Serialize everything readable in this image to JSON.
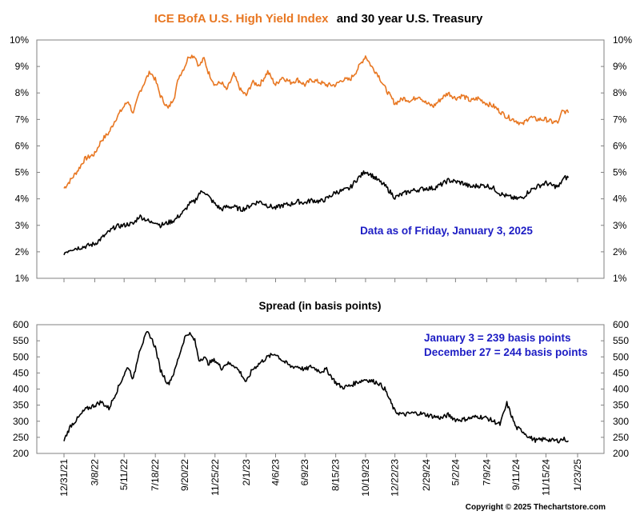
{
  "top_title": {
    "part1": "ICE BofA U.S. High Yield Index",
    "part2": "and 30 year U.S. Treasury",
    "part1_color": "#e87722",
    "part2_color": "#000000"
  },
  "bottom_title": "Spread (in basis points)",
  "annotation_top": "Data as of Friday, January 3, 2025",
  "annotation_bottom": [
    "January 3 = 239 basis points",
    "December 27 = 244 basis points"
  ],
  "annotation_color": "#1c1cc4",
  "copyright": "Copyright © 2025 Thechartstore.com",
  "x_axis_dates": [
    "12/31/21",
    "3/8/22",
    "5/11/22",
    "7/18/22",
    "9/20/22",
    "11/25/22",
    "2/1/23",
    "4/6/23",
    "6/9/23",
    "8/15/23",
    "10/19/23",
    "12/22/23",
    "2/29/24",
    "5/2/24",
    "7/9/24",
    "9/11/24",
    "11/15/24",
    "1/23/25"
  ],
  "chart_data": [
    {
      "type": "line",
      "ylim": [
        1,
        10
      ],
      "ytick_labels": [
        "1%",
        "2%",
        "3%",
        "4%",
        "5%",
        "6%",
        "7%",
        "8%",
        "9%",
        "10%"
      ],
      "grid": false,
      "series": [
        {
          "name": "ICE BofA U.S. High Yield Index",
          "color": "#e87722",
          "x": [
            "12/31/21",
            "1/14/22",
            "1/31/22",
            "2/14/22",
            "3/8/22",
            "3/22/22",
            "4/8/22",
            "4/22/22",
            "5/11/22",
            "5/20/22",
            "5/31/22",
            "6/13/22",
            "6/30/22",
            "7/7/22",
            "7/18/22",
            "7/29/22",
            "8/15/22",
            "8/29/22",
            "9/7/22",
            "9/20/22",
            "9/29/22",
            "10/12/22",
            "10/21/22",
            "11/1/22",
            "11/10/22",
            "11/25/22",
            "12/9/22",
            "12/20/22",
            "1/5/23",
            "1/20/23",
            "2/1/23",
            "2/14/23",
            "3/2/23",
            "3/20/23",
            "4/6/23",
            "4/20/23",
            "5/9/23",
            "5/24/23",
            "6/9/23",
            "6/23/23",
            "7/12/23",
            "7/26/23",
            "8/15/23",
            "8/29/23",
            "9/15/23",
            "9/28/23",
            "10/19/23",
            "11/1/23",
            "11/15/23",
            "11/30/23",
            "12/22/23",
            "1/10/24",
            "1/26/24",
            "2/12/24",
            "2/29/24",
            "3/15/24",
            "4/2/24",
            "4/16/24",
            "5/2/24",
            "5/17/24",
            "6/4/24",
            "6/20/24",
            "7/9/24",
            "7/24/24",
            "8/7/24",
            "8/22/24",
            "9/11/24",
            "9/25/24",
            "10/10/24",
            "10/25/24",
            "11/15/24",
            "11/29/24",
            "12/13/24",
            "12/20/24",
            "12/27/24",
            "1/3/25"
          ],
          "values": [
            4.4,
            4.7,
            5.1,
            5.5,
            5.7,
            6.2,
            6.5,
            7.0,
            7.5,
            7.7,
            7.2,
            8.0,
            8.6,
            8.8,
            8.5,
            7.9,
            7.4,
            7.9,
            8.6,
            9.0,
            9.4,
            9.4,
            9.0,
            9.3,
            8.8,
            8.3,
            8.4,
            8.1,
            8.7,
            8.1,
            7.9,
            8.4,
            8.3,
            8.8,
            8.3,
            8.6,
            8.4,
            8.5,
            8.3,
            8.5,
            8.4,
            8.3,
            8.3,
            8.5,
            8.5,
            8.8,
            9.4,
            9.0,
            8.7,
            8.2,
            7.6,
            7.8,
            7.7,
            7.9,
            7.6,
            7.5,
            7.8,
            8.0,
            7.8,
            7.9,
            7.7,
            7.8,
            7.6,
            7.5,
            7.3,
            7.1,
            6.95,
            6.8,
            7.1,
            7.0,
            7.0,
            6.9,
            6.9,
            7.3,
            7.3,
            7.25
          ]
        },
        {
          "name": "30 year U.S. Treasury",
          "color": "#000000",
          "x": [
            "12/31/21",
            "1/14/22",
            "1/31/22",
            "2/14/22",
            "3/8/22",
            "3/22/22",
            "4/8/22",
            "4/22/22",
            "5/11/22",
            "5/20/22",
            "5/31/22",
            "6/13/22",
            "6/30/22",
            "7/7/22",
            "7/18/22",
            "7/29/22",
            "8/15/22",
            "8/29/22",
            "9/7/22",
            "9/20/22",
            "9/29/22",
            "10/12/22",
            "10/21/22",
            "11/1/22",
            "11/10/22",
            "11/25/22",
            "12/9/22",
            "12/20/22",
            "1/5/23",
            "1/20/23",
            "2/1/23",
            "2/14/23",
            "3/2/23",
            "3/20/23",
            "4/6/23",
            "4/20/23",
            "5/9/23",
            "5/24/23",
            "6/9/23",
            "6/23/23",
            "7/12/23",
            "7/26/23",
            "8/15/23",
            "8/29/23",
            "9/15/23",
            "9/28/23",
            "10/19/23",
            "11/1/23",
            "11/15/23",
            "11/30/23",
            "12/22/23",
            "1/10/24",
            "1/26/24",
            "2/12/24",
            "2/29/24",
            "3/15/24",
            "4/2/24",
            "4/16/24",
            "5/2/24",
            "5/17/24",
            "6/4/24",
            "6/20/24",
            "7/9/24",
            "7/24/24",
            "8/7/24",
            "8/22/24",
            "9/11/24",
            "9/25/24",
            "10/10/24",
            "10/25/24",
            "11/15/24",
            "11/29/24",
            "12/13/24",
            "12/20/24",
            "12/27/24",
            "1/3/25"
          ],
          "values": [
            1.95,
            2.1,
            2.15,
            2.2,
            2.3,
            2.5,
            2.75,
            2.95,
            3.0,
            3.05,
            3.05,
            3.35,
            3.2,
            3.1,
            3.15,
            3.0,
            3.1,
            3.2,
            3.35,
            3.55,
            3.8,
            3.9,
            4.2,
            4.3,
            4.1,
            3.8,
            3.6,
            3.7,
            3.7,
            3.6,
            3.65,
            3.8,
            3.9,
            3.75,
            3.65,
            3.75,
            3.8,
            3.9,
            3.85,
            3.95,
            3.9,
            4.0,
            4.25,
            4.3,
            4.4,
            4.7,
            5.05,
            4.9,
            4.7,
            4.5,
            4.05,
            4.2,
            4.3,
            4.35,
            4.4,
            4.4,
            4.55,
            4.7,
            4.65,
            4.6,
            4.45,
            4.5,
            4.5,
            4.4,
            4.2,
            4.1,
            4.0,
            4.05,
            4.3,
            4.45,
            4.6,
            4.5,
            4.45,
            4.7,
            4.8,
            4.8
          ]
        }
      ]
    },
    {
      "type": "line",
      "title": "Spread (in basis points)",
      "ylim": [
        200,
        600
      ],
      "ytick_labels": [
        "200",
        "250",
        "300",
        "350",
        "400",
        "450",
        "500",
        "550",
        "600"
      ],
      "grid": false,
      "series": [
        {
          "color": "#000000",
          "x": [
            "12/31/21",
            "1/14/22",
            "1/31/22",
            "2/14/22",
            "3/8/22",
            "3/22/22",
            "4/8/22",
            "4/22/22",
            "5/11/22",
            "5/20/22",
            "5/31/22",
            "6/13/22",
            "6/30/22",
            "7/7/22",
            "7/18/22",
            "7/29/22",
            "8/15/22",
            "8/29/22",
            "9/7/22",
            "9/20/22",
            "9/29/22",
            "10/12/22",
            "10/21/22",
            "11/1/22",
            "11/10/22",
            "11/25/22",
            "12/9/22",
            "12/20/22",
            "1/5/23",
            "1/20/23",
            "2/1/23",
            "2/14/23",
            "3/2/23",
            "3/20/23",
            "4/6/23",
            "4/20/23",
            "5/9/23",
            "5/24/23",
            "6/9/23",
            "6/23/23",
            "7/12/23",
            "7/26/23",
            "8/15/23",
            "8/29/23",
            "9/15/23",
            "9/28/23",
            "10/19/23",
            "11/1/23",
            "11/15/23",
            "11/30/23",
            "12/22/23",
            "1/10/24",
            "1/26/24",
            "2/12/24",
            "2/29/24",
            "3/15/24",
            "4/2/24",
            "4/16/24",
            "5/2/24",
            "5/17/24",
            "6/4/24",
            "6/20/24",
            "7/9/24",
            "7/24/24",
            "8/7/24",
            "8/22/24",
            "9/11/24",
            "9/25/24",
            "10/10/24",
            "10/25/24",
            "11/15/24",
            "11/29/24",
            "12/13/24",
            "12/20/24",
            "12/27/24",
            "1/3/25"
          ],
          "values": [
            240,
            285,
            310,
            335,
            350,
            360,
            340,
            385,
            445,
            470,
            430,
            520,
            575,
            565,
            530,
            460,
            415,
            455,
            500,
            560,
            575,
            550,
            490,
            500,
            480,
            490,
            465,
            480,
            475,
            450,
            420,
            460,
            480,
            500,
            510,
            490,
            470,
            470,
            460,
            470,
            455,
            460,
            420,
            405,
            410,
            420,
            430,
            425,
            420,
            400,
            330,
            320,
            325,
            325,
            320,
            315,
            310,
            320,
            305,
            305,
            310,
            315,
            310,
            300,
            290,
            355,
            280,
            270,
            250,
            240,
            245,
            240,
            240,
            244,
            244,
            239
          ]
        }
      ]
    }
  ]
}
